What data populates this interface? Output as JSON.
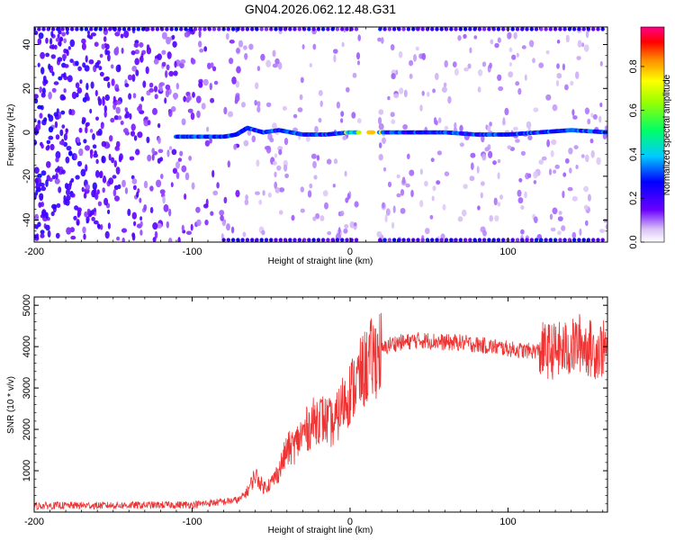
{
  "title": "GN04.2026.062.12.48.G31",
  "chart_data": [
    {
      "type": "heatmap",
      "name": "spectrogram",
      "xlabel": "Height of straight line (km)",
      "ylabel": "Frequency (Hz)",
      "xlim": [
        -200,
        163
      ],
      "ylim": [
        -50,
        48
      ],
      "xticks": [
        -200,
        -100,
        0,
        100
      ],
      "yticks": [
        -40,
        -20,
        0,
        20,
        40
      ],
      "colorbar": {
        "label": "Normalized spectral amplitude",
        "range": [
          0,
          0.98
        ],
        "ticks": [
          0.0,
          0.2,
          0.4,
          0.6,
          0.8
        ]
      },
      "ridge": {
        "description_points_x": [
          -110,
          -90,
          -80,
          -72,
          -65,
          -55,
          -45,
          -30,
          -15,
          0,
          10,
          20,
          40,
          60,
          80,
          100,
          120,
          140,
          163
        ],
        "description_points_y": [
          -2,
          -2,
          -2,
          -1,
          2,
          0,
          1,
          -1,
          -1,
          0,
          0,
          0,
          0,
          0,
          -1,
          -1,
          0,
          1,
          0
        ]
      },
      "gap_x": [
        6,
        18
      ]
    },
    {
      "type": "line",
      "name": "snr",
      "xlabel": "Height of straight line (km)",
      "ylabel": "SNR (10 * v/v)",
      "xlim": [
        -200,
        163
      ],
      "ylim": [
        0,
        5200
      ],
      "xticks": [
        -200,
        -100,
        0,
        100
      ],
      "yticks": [
        1000,
        2000,
        3000,
        4000,
        5000
      ],
      "color": "#ee3333",
      "series": [
        {
          "name": "SNR",
          "x": [
            -200,
            -180,
            -160,
            -140,
            -120,
            -100,
            -80,
            -70,
            -65,
            -60,
            -55,
            -50,
            -45,
            -40,
            -35,
            -30,
            -25,
            -20,
            -15,
            -10,
            -5,
            0,
            5,
            10,
            15,
            20,
            25,
            30,
            35,
            40,
            50,
            60,
            70,
            80,
            90,
            100,
            110,
            120,
            130,
            140,
            145,
            150,
            155,
            160,
            163
          ],
          "y": [
            150,
            160,
            160,
            165,
            170,
            180,
            250,
            300,
            500,
            900,
            600,
            700,
            1000,
            1500,
            1600,
            1900,
            2100,
            2300,
            2200,
            2100,
            2600,
            2900,
            3200,
            3500,
            3750,
            3900,
            4050,
            4100,
            4100,
            4150,
            4150,
            4100,
            4100,
            4050,
            4000,
            3950,
            3900,
            3900,
            3900,
            3950,
            4100,
            4000,
            3900,
            3950,
            3900
          ]
        }
      ]
    }
  ]
}
